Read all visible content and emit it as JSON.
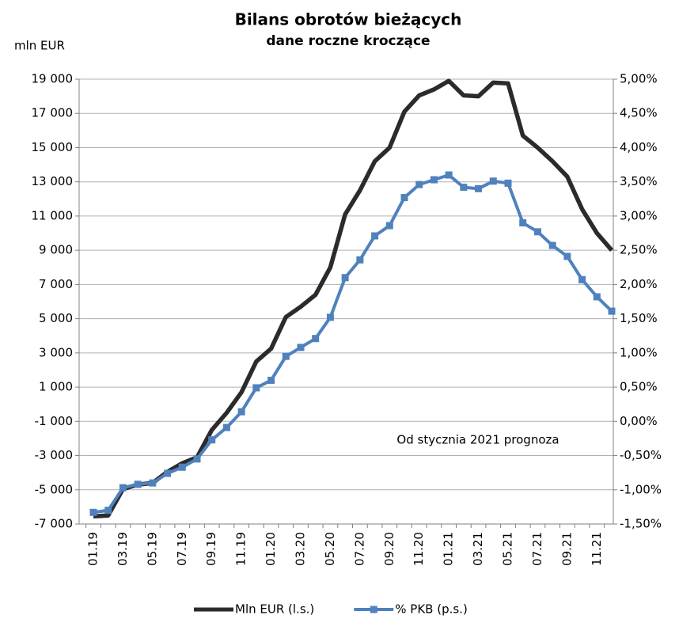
{
  "chart_data": {
    "type": "line",
    "title": "Bilans obrotów bieżących",
    "subtitle": "dane roczne kroczące",
    "y_label": "mln EUR",
    "annotation": "Od stycznia 2021 prognoza",
    "categories": [
      "01.19",
      null,
      "03.19",
      null,
      "05.19",
      null,
      "07.19",
      null,
      "09.19",
      null,
      "11.19",
      null,
      "01.20",
      null,
      "03.20",
      null,
      "05.20",
      null,
      "07.20",
      null,
      "09.20",
      null,
      "11.20",
      null,
      "01.21",
      null,
      "03.21",
      null,
      "05.21",
      null,
      "07.21",
      null,
      "09.21",
      null,
      "11.21",
      null
    ],
    "series": [
      {
        "name": "Mln EUR (l.s.)",
        "color": "#2b2b2b",
        "values": [
          -6550,
          -6500,
          -4950,
          -4700,
          -4600,
          -3950,
          -3450,
          -3100,
          -1500,
          -500,
          700,
          2500,
          3250,
          5100,
          5700,
          6400,
          8000,
          11100,
          12500,
          14200,
          15000,
          17100,
          18050,
          18400,
          18900,
          18050,
          18000,
          18800,
          18750,
          15700,
          15000,
          14200,
          13300,
          11400,
          10000,
          9000
        ]
      },
      {
        "name": "% PKB (p.s.)",
        "color": "#4f81bd",
        "axis": "y2",
        "marker": "square",
        "values": [
          -1.33,
          -1.3,
          -0.97,
          -0.92,
          -0.9,
          -0.76,
          -0.67,
          -0.55,
          -0.27,
          -0.09,
          0.14,
          0.49,
          0.6,
          0.95,
          1.08,
          1.21,
          1.52,
          2.1,
          2.36,
          2.71,
          2.86,
          3.27,
          3.46,
          3.53,
          3.6,
          3.42,
          3.4,
          3.51,
          3.48,
          2.9,
          2.77,
          2.57,
          2.41,
          2.07,
          1.82,
          1.61
        ]
      }
    ],
    "ylim": [
      -7000,
      19000
    ],
    "yticks": [
      {
        "value": -7000,
        "label": "-7 000"
      },
      {
        "value": -5000,
        "label": "-5 000"
      },
      {
        "value": -3000,
        "label": "-3 000"
      },
      {
        "value": -1000,
        "label": "-1 000"
      },
      {
        "value": 1000,
        "label": "1 000"
      },
      {
        "value": 3000,
        "label": "3 000"
      },
      {
        "value": 5000,
        "label": "5 000"
      },
      {
        "value": 7000,
        "label": "7 000"
      },
      {
        "value": 9000,
        "label": "9 000"
      },
      {
        "value": 11000,
        "label": "11 000"
      },
      {
        "value": 13000,
        "label": "13 000"
      },
      {
        "value": 15000,
        "label": "15 000"
      },
      {
        "value": 17000,
        "label": "17 000"
      },
      {
        "value": 19000,
        "label": "19 000"
      }
    ],
    "y2lim": [
      -1.5,
      5
    ],
    "y2ticks": [
      {
        "value": -1.5,
        "label": "-1,50%"
      },
      {
        "value": -1,
        "label": "-1,00%"
      },
      {
        "value": -0.5,
        "label": "-0,50%"
      },
      {
        "value": 0,
        "label": "0,00%"
      },
      {
        "value": 0.5,
        "label": "0,50%"
      },
      {
        "value": 1,
        "label": "1,00%"
      },
      {
        "value": 1.5,
        "label": "1,50%"
      },
      {
        "value": 2,
        "label": "2,00%"
      },
      {
        "value": 2.5,
        "label": "2,50%"
      },
      {
        "value": 3,
        "label": "3,00%"
      },
      {
        "value": 3.5,
        "label": "3,50%"
      },
      {
        "value": 4,
        "label": "4,00%"
      },
      {
        "value": 4.5,
        "label": "4,50%"
      },
      {
        "value": 5,
        "label": "5,00%"
      }
    ],
    "grid": true,
    "legend": "bottom"
  }
}
